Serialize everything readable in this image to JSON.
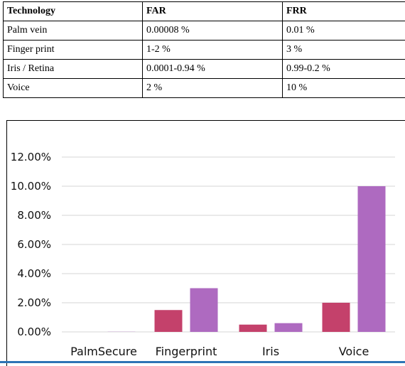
{
  "table": {
    "headers": [
      "Technology",
      "FAR",
      "FRR"
    ],
    "rows": [
      [
        "Palm vein",
        "0.00008 %",
        "0.01 %"
      ],
      [
        "Finger print",
        "1-2 %",
        "3 %"
      ],
      [
        "Iris / Retina",
        "0.0001-0.94 %",
        "0.99-0.2 %"
      ],
      [
        "Voice",
        "2 %",
        "10 %"
      ]
    ]
  },
  "chart_data": {
    "type": "bar",
    "categories": [
      "PalmSecure",
      "Fingerprint",
      "Iris",
      "Voice"
    ],
    "series": [
      {
        "values": [
          8e-05,
          1.5,
          0.5,
          2.0
        ],
        "color": "#c4416b"
      },
      {
        "values": [
          0.01,
          3.0,
          0.6,
          10.0
        ],
        "color": "#ae6ac0"
      }
    ],
    "yticks": [
      "0.00%",
      "2.00%",
      "4.00%",
      "6.00%",
      "8.00%",
      "10.00%",
      "12.00%"
    ],
    "ylim": [
      0,
      12
    ],
    "grid": true,
    "title": "",
    "xlabel": "",
    "ylabel": ""
  }
}
